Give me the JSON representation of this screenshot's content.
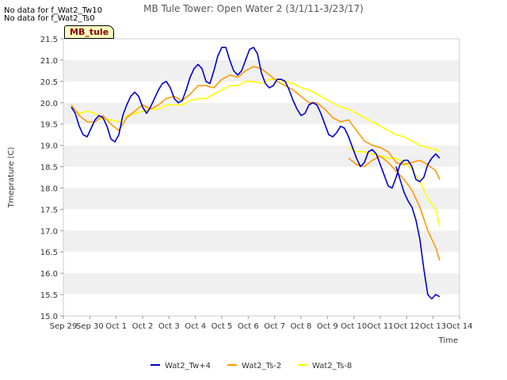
{
  "no_data_notes": [
    "No data for f_Wat2_Tw10",
    "No data for f_Wat2_Ts0"
  ],
  "station_badge": "MB_tule",
  "chart_data": {
    "type": "line",
    "title": "MB Tule Tower: Open Water 2 (3/1/11-3/23/17)",
    "xlabel": "Time",
    "ylabel": "Tmeprature (C)",
    "ylim": [
      15.0,
      21.5
    ],
    "yticks": [
      15.0,
      15.5,
      16.0,
      16.5,
      17.0,
      17.5,
      18.0,
      18.5,
      19.0,
      19.5,
      20.0,
      20.5,
      21.0,
      21.5
    ],
    "xlim": [
      0,
      15
    ],
    "xtick_labels": [
      "Sep 29",
      "Sep 30",
      "Oct 1",
      "Oct 2",
      "Oct 3",
      "Oct 4",
      "Oct 5",
      "Oct 6",
      "Oct 7",
      "Oct 8",
      "Oct 9",
      "Oct 10",
      "Oct 11",
      "Oct 12",
      "Oct 13",
      "Oct 14"
    ],
    "grid": "horizontal bands",
    "legend_position": "bottom",
    "series": [
      {
        "name": "Wat2_Tw+4",
        "color": "#0000cc",
        "x": [
          0.3,
          0.45,
          0.6,
          0.75,
          0.9,
          1.05,
          1.2,
          1.35,
          1.5,
          1.65,
          1.8,
          1.95,
          2.1,
          2.25,
          2.4,
          2.55,
          2.7,
          2.85,
          3.0,
          3.15,
          3.3,
          3.45,
          3.6,
          3.75,
          3.9,
          4.05,
          4.2,
          4.35,
          4.5,
          4.65,
          4.8,
          4.95,
          5.1,
          5.25,
          5.4,
          5.55,
          5.7,
          5.85,
          6.0,
          6.15,
          6.3,
          6.45,
          6.6,
          6.75,
          6.9,
          7.05,
          7.2,
          7.35,
          7.5,
          7.65,
          7.8,
          7.95,
          8.1,
          8.25,
          8.4,
          8.55,
          8.7,
          8.85,
          9.0,
          9.15,
          9.3,
          9.45,
          9.6,
          9.75,
          9.9,
          10.05,
          10.2,
          10.35,
          10.5,
          10.65,
          10.8,
          10.95,
          11.1,
          11.25,
          11.4,
          11.55,
          11.7,
          11.85,
          12.0,
          12.15,
          12.3,
          12.45,
          12.6,
          12.75,
          12.9,
          13.05,
          13.2,
          13.35,
          13.5,
          13.65,
          13.8,
          13.95,
          14.1,
          14.25
        ],
        "y": [
          19.9,
          19.75,
          19.45,
          19.25,
          19.2,
          19.4,
          19.6,
          19.7,
          19.65,
          19.45,
          19.15,
          19.08,
          19.25,
          19.7,
          19.95,
          20.15,
          20.25,
          20.15,
          19.9,
          19.75,
          19.9,
          20.1,
          20.3,
          20.45,
          20.5,
          20.35,
          20.1,
          20.0,
          20.05,
          20.3,
          20.6,
          20.8,
          20.9,
          20.8,
          20.5,
          20.45,
          20.75,
          21.1,
          21.3,
          21.3,
          21.0,
          20.75,
          20.65,
          20.75,
          21.0,
          21.25,
          21.3,
          21.15,
          20.7,
          20.45,
          20.35,
          20.4,
          20.55,
          20.55,
          20.5,
          20.3,
          20.05,
          19.85,
          19.7,
          19.75,
          19.95,
          20.0,
          19.95,
          19.75,
          19.5,
          19.25,
          19.2,
          19.3,
          19.45,
          19.4,
          19.2,
          18.95,
          18.7,
          18.5,
          18.6,
          18.85,
          18.9,
          18.8,
          18.55,
          18.3,
          18.05,
          18.0,
          18.25,
          18.55,
          18.65,
          18.65,
          18.5,
          18.2,
          18.15,
          18.25,
          18.55,
          18.7,
          18.8,
          18.7
        ],
        "x2": [
          12.6,
          12.75,
          12.9,
          13.05,
          13.2,
          13.35,
          13.5,
          13.65,
          13.8,
          13.95,
          14.1,
          14.25
        ],
        "y2": [
          18.5,
          18.2,
          17.9,
          17.7,
          17.55,
          17.25,
          16.8,
          16.1,
          15.5,
          15.4,
          15.5,
          15.45
        ]
      },
      {
        "name": "Wat2_Ts-2",
        "color": "#ff9900",
        "x": [
          0.3,
          0.6,
          0.9,
          1.2,
          1.5,
          1.8,
          2.1,
          2.4,
          2.7,
          3.0,
          3.3,
          3.6,
          3.9,
          4.2,
          4.5,
          4.8,
          5.1,
          5.4,
          5.7,
          6.0,
          6.3,
          6.6,
          6.9,
          7.2,
          7.5,
          7.8,
          8.1,
          8.4,
          8.7,
          9.0,
          9.3,
          9.6,
          9.9,
          10.2,
          10.5,
          10.8,
          11.1,
          11.4,
          11.7,
          12.0,
          12.3,
          12.6,
          12.9,
          13.2,
          13.5,
          13.8,
          14.1,
          14.25
        ],
        "y": [
          19.95,
          19.7,
          19.55,
          19.55,
          19.7,
          19.5,
          19.35,
          19.65,
          19.8,
          19.95,
          19.85,
          19.95,
          20.1,
          20.15,
          20.05,
          20.2,
          20.4,
          20.4,
          20.35,
          20.55,
          20.65,
          20.6,
          20.75,
          20.85,
          20.8,
          20.65,
          20.5,
          20.4,
          20.3,
          20.15,
          20.0,
          20.0,
          19.85,
          19.65,
          19.55,
          19.6,
          19.35,
          19.1,
          19.0,
          18.95,
          18.85,
          18.6,
          18.55,
          18.6,
          18.65,
          18.55,
          18.4,
          18.2
        ],
        "x2": [
          10.8,
          11.1,
          11.4,
          11.7,
          12.0,
          12.3,
          12.6,
          12.9,
          13.2,
          13.5,
          13.8,
          14.1,
          14.25
        ],
        "y2": [
          18.7,
          18.55,
          18.5,
          18.65,
          18.75,
          18.6,
          18.4,
          18.2,
          17.95,
          17.55,
          17.0,
          16.6,
          16.3
        ]
      },
      {
        "name": "Wat2_Ts-8",
        "color": "#ffff00",
        "x": [
          0.3,
          0.6,
          0.9,
          1.2,
          1.5,
          1.8,
          2.1,
          2.4,
          2.7,
          3.0,
          3.3,
          3.6,
          3.9,
          4.2,
          4.5,
          4.8,
          5.1,
          5.4,
          5.7,
          6.0,
          6.3,
          6.6,
          6.9,
          7.2,
          7.5,
          7.8,
          8.1,
          8.4,
          8.7,
          9.0,
          9.3,
          9.6,
          9.9,
          10.2,
          10.5,
          10.8,
          11.1,
          11.4,
          11.7,
          12.0,
          12.3,
          12.6,
          12.9,
          13.2,
          13.5,
          13.8,
          14.1,
          14.25
        ],
        "y": [
          19.9,
          19.75,
          19.8,
          19.75,
          19.6,
          19.6,
          19.55,
          19.7,
          19.75,
          19.8,
          19.85,
          19.85,
          19.95,
          19.95,
          19.95,
          20.05,
          20.1,
          20.1,
          20.2,
          20.3,
          20.4,
          20.4,
          20.5,
          20.5,
          20.45,
          20.55,
          20.55,
          20.5,
          20.45,
          20.35,
          20.3,
          20.2,
          20.1,
          20.0,
          19.9,
          19.85,
          19.75,
          19.65,
          19.55,
          19.45,
          19.35,
          19.25,
          19.2,
          19.1,
          19.0,
          18.95,
          18.9,
          18.85
        ],
        "x2": [
          10.8,
          11.1,
          11.4,
          11.7,
          12.0,
          12.3,
          12.6,
          12.9,
          13.2,
          13.5,
          13.8,
          14.1,
          14.25
        ],
        "y2": [
          18.95,
          18.85,
          18.85,
          18.8,
          18.75,
          18.7,
          18.7,
          18.6,
          18.45,
          18.15,
          17.75,
          17.5,
          17.1
        ]
      }
    ]
  }
}
